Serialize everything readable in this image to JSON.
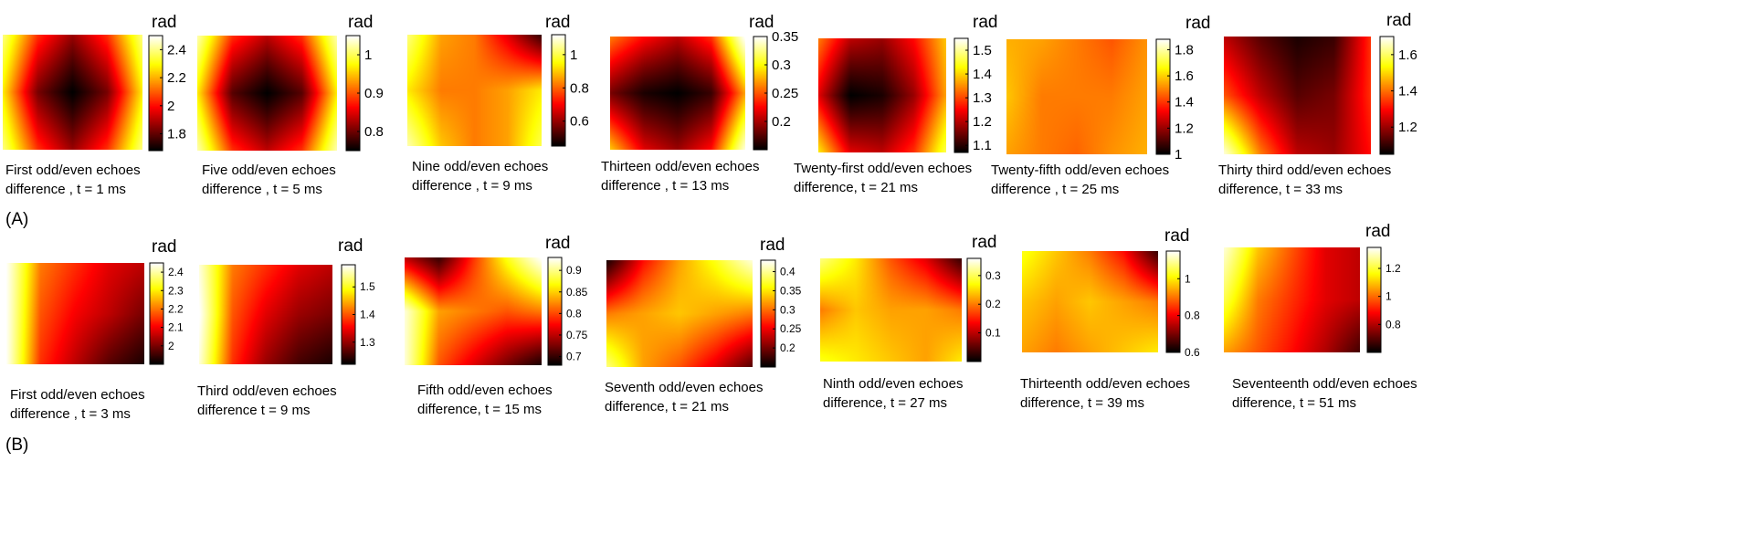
{
  "chart_data": [
    {
      "type": "heatmap",
      "panel": "A",
      "colormap": "hot",
      "colorbar_label": "rad",
      "caption": [
        "First odd/even echoes",
        "difference , t = 1 ms"
      ],
      "colorbar_range": [
        1.68,
        2.5
      ],
      "colorbar_ticks": [
        1.8,
        2,
        2.2,
        2.4
      ],
      "tick_labels": [
        "1.8",
        "2",
        "2.2",
        "2.4"
      ],
      "field": [
        [
          0.85,
          0.45,
          0.25,
          0.45,
          0.85
        ],
        [
          0.7,
          0.2,
          0.0,
          0.2,
          0.7
        ],
        [
          0.85,
          0.45,
          0.25,
          0.45,
          0.85
        ]
      ]
    },
    {
      "type": "heatmap",
      "panel": "A",
      "colormap": "hot",
      "colorbar_label": "rad",
      "caption": [
        "Five odd/even echoes",
        "difference , t = 5 ms"
      ],
      "colorbar_range": [
        0.75,
        1.05
      ],
      "colorbar_ticks": [
        0.8,
        0.9,
        1
      ],
      "tick_labels": [
        "0.8",
        "0.9",
        "1"
      ],
      "field": [
        [
          0.9,
          0.45,
          0.3,
          0.45,
          0.9
        ],
        [
          0.7,
          0.15,
          0.0,
          0.15,
          0.7
        ],
        [
          0.9,
          0.45,
          0.3,
          0.45,
          0.9
        ]
      ]
    },
    {
      "type": "heatmap",
      "panel": "A",
      "colormap": "hot",
      "colorbar_label": "rad",
      "caption": [
        "Nine odd/even echoes",
        "difference , t = 9 ms"
      ],
      "colorbar_range": [
        0.45,
        1.12
      ],
      "colorbar_ticks": [
        0.6,
        0.8,
        1
      ],
      "tick_labels": [
        "0.6",
        "0.8",
        "1"
      ],
      "field": [
        [
          0.85,
          0.6,
          0.55,
          0.35,
          0.1
        ],
        [
          0.7,
          0.55,
          0.55,
          0.6,
          0.7
        ],
        [
          0.9,
          0.65,
          0.55,
          0.6,
          0.8
        ]
      ]
    },
    {
      "type": "heatmap",
      "panel": "A",
      "colormap": "hot",
      "colorbar_label": "rad",
      "caption": [
        "Thirteen odd/even echoes",
        "difference , t = 13 ms"
      ],
      "colorbar_range": [
        0.15,
        0.35
      ],
      "colorbar_ticks": [
        0.2,
        0.25,
        0.3,
        0.35
      ],
      "tick_labels": [
        "0.2",
        "0.25",
        "0.3",
        "0.35"
      ],
      "field": [
        [
          0.55,
          0.4,
          0.3,
          0.45,
          1.0
        ],
        [
          0.2,
          0.05,
          0.0,
          0.1,
          0.6
        ],
        [
          0.65,
          0.35,
          0.25,
          0.4,
          0.95
        ]
      ]
    },
    {
      "type": "heatmap",
      "panel": "A",
      "colormap": "hot",
      "colorbar_label": "rad",
      "caption": [
        "Twenty-first odd/even echoes",
        "difference,  t = 21 ms"
      ],
      "colorbar_range": [
        1.07,
        1.55
      ],
      "colorbar_ticks": [
        1.1,
        1.2,
        1.3,
        1.4,
        1.5
      ],
      "tick_labels": [
        "1.1",
        "1.2",
        "1.3",
        "1.4",
        "1.5"
      ],
      "field": [
        [
          0.55,
          0.3,
          0.25,
          0.4,
          0.65
        ],
        [
          0.35,
          0.0,
          0.05,
          0.25,
          0.6
        ],
        [
          0.7,
          0.35,
          0.3,
          0.45,
          0.8
        ]
      ]
    },
    {
      "type": "heatmap",
      "panel": "A",
      "colormap": "hot",
      "colorbar_label": "rad",
      "caption": [
        "Twenty-fifth odd/even echoes",
        "difference , t = 25 ms"
      ],
      "colorbar_range": [
        1.0,
        1.88
      ],
      "colorbar_ticks": [
        1,
        1.2,
        1.4,
        1.6,
        1.8
      ],
      "tick_labels": [
        "1",
        "1.2",
        "1.4",
        "1.6",
        "1.8"
      ],
      "field": [
        [
          0.62,
          0.6,
          0.55,
          0.5,
          0.58
        ],
        [
          0.65,
          0.55,
          0.55,
          0.55,
          0.6
        ],
        [
          0.6,
          0.55,
          0.52,
          0.58,
          0.62
        ]
      ]
    },
    {
      "type": "heatmap",
      "panel": "A",
      "colormap": "hot",
      "colorbar_label": "rad",
      "caption": [
        "Thirty third  odd/even echoes",
        "difference,  t = 33 ms"
      ],
      "colorbar_range": [
        1.05,
        1.7
      ],
      "colorbar_ticks": [
        1.2,
        1.4,
        1.6
      ],
      "tick_labels": [
        "1.2",
        "1.4",
        "1.6"
      ],
      "field": [
        [
          0.3,
          0.15,
          0.05,
          0.1,
          0.45
        ],
        [
          0.5,
          0.3,
          0.15,
          0.2,
          0.45
        ],
        [
          0.95,
          0.55,
          0.3,
          0.25,
          0.4
        ]
      ]
    },
    {
      "type": "heatmap",
      "panel": "B",
      "colormap": "hot",
      "colorbar_label": "rad",
      "caption": [
        "First odd/even echoes",
        "difference    , t = 3 ms"
      ],
      "colorbar_range": [
        1.9,
        2.45
      ],
      "colorbar_ticks": [
        2,
        2.1,
        2.2,
        2.3,
        2.4
      ],
      "tick_labels": [
        "2",
        "2.1",
        "2.2",
        "2.3",
        "2.4"
      ],
      "field": [
        [
          1.0,
          0.55,
          0.45,
          0.35,
          0.3
        ],
        [
          1.0,
          0.5,
          0.38,
          0.3,
          0.2
        ],
        [
          1.0,
          0.45,
          0.3,
          0.15,
          0.05
        ]
      ]
    },
    {
      "type": "heatmap",
      "panel": "B",
      "colormap": "hot",
      "colorbar_label": "rad",
      "caption": [
        "Third odd/even echoes",
        "difference  t = 9 ms"
      ],
      "colorbar_range": [
        1.22,
        1.58
      ],
      "colorbar_ticks": [
        1.3,
        1.4,
        1.5
      ],
      "tick_labels": [
        "1.3",
        "1.4",
        "1.5"
      ],
      "field": [
        [
          0.95,
          0.55,
          0.45,
          0.35,
          0.3
        ],
        [
          1.0,
          0.5,
          0.35,
          0.25,
          0.2
        ],
        [
          0.95,
          0.45,
          0.25,
          0.12,
          0.05
        ]
      ]
    },
    {
      "type": "heatmap",
      "panel": "B",
      "colormap": "hot",
      "colorbar_label": "rad",
      "caption": [
        "Fifth  odd/even echoes",
        "difference,  t = 15 ms"
      ],
      "colorbar_range": [
        0.68,
        0.93
      ],
      "colorbar_ticks": [
        0.7,
        0.75,
        0.8,
        0.85,
        0.9
      ],
      "tick_labels": [
        "0.7",
        "0.75",
        "0.8",
        "0.85",
        "0.9"
      ],
      "field": [
        [
          0.3,
          0.1,
          0.45,
          0.75,
          1.0
        ],
        [
          0.95,
          0.6,
          0.55,
          0.5,
          0.55
        ],
        [
          0.95,
          0.5,
          0.35,
          0.2,
          0.05
        ]
      ]
    },
    {
      "type": "heatmap",
      "panel": "B",
      "colormap": "hot",
      "colorbar_label": "rad",
      "caption": [
        "Seventh odd/even echoes",
        "difference,  t = 21 ms"
      ],
      "colorbar_range": [
        0.15,
        0.43
      ],
      "colorbar_ticks": [
        0.2,
        0.25,
        0.3,
        0.35,
        0.4
      ],
      "tick_labels": [
        "0.2",
        "0.25",
        "0.3",
        "0.35",
        "0.4"
      ],
      "field": [
        [
          0.05,
          0.4,
          0.6,
          0.75,
          0.95
        ],
        [
          0.55,
          0.6,
          0.65,
          0.6,
          0.55
        ],
        [
          0.85,
          0.6,
          0.5,
          0.35,
          0.15
        ]
      ]
    },
    {
      "type": "heatmap",
      "panel": "B",
      "colormap": "hot",
      "colorbar_label": "rad",
      "caption": [
        "Ninth  odd/even echoes",
        "difference,  t = 27 ms"
      ],
      "colorbar_range": [
        0.0,
        0.36
      ],
      "colorbar_ticks": [
        0.1,
        0.2,
        0.3
      ],
      "tick_labels": [
        "0.1",
        "0.2",
        "0.3"
      ],
      "field": [
        [
          0.85,
          0.7,
          0.5,
          0.35,
          0.1
        ],
        [
          0.55,
          0.65,
          0.6,
          0.6,
          0.55
        ],
        [
          0.75,
          0.7,
          0.65,
          0.6,
          0.7
        ]
      ]
    },
    {
      "type": "heatmap",
      "panel": "B",
      "colormap": "hot",
      "colorbar_label": "rad",
      "caption": [
        "Thirteenth  odd/even echoes",
        "difference,  t = 39 ms"
      ],
      "colorbar_range": [
        0.6,
        1.15
      ],
      "colorbar_ticks": [
        0.6,
        0.8,
        1
      ],
      "tick_labels": [
        "0.6",
        "0.8",
        "1"
      ],
      "field": [
        [
          0.75,
          0.65,
          0.55,
          0.4,
          0.1
        ],
        [
          0.65,
          0.6,
          0.65,
          0.6,
          0.55
        ],
        [
          0.6,
          0.55,
          0.6,
          0.65,
          0.7
        ]
      ]
    },
    {
      "type": "heatmap",
      "panel": "B",
      "colormap": "hot",
      "colorbar_label": "rad",
      "caption": [
        "Seventeenth odd/even echoes",
        "difference,  t = 51  ms"
      ],
      "colorbar_range": [
        0.6,
        1.35
      ],
      "colorbar_ticks": [
        0.8,
        1,
        1.2
      ],
      "tick_labels": [
        "0.8",
        "1",
        "1.2"
      ],
      "field": [
        [
          0.95,
          0.65,
          0.5,
          0.35,
          0.3
        ],
        [
          0.8,
          0.55,
          0.45,
          0.35,
          0.3
        ],
        [
          0.6,
          0.5,
          0.4,
          0.28,
          0.12
        ]
      ]
    }
  ],
  "row_labels": [
    "(A)",
    "(B)"
  ]
}
